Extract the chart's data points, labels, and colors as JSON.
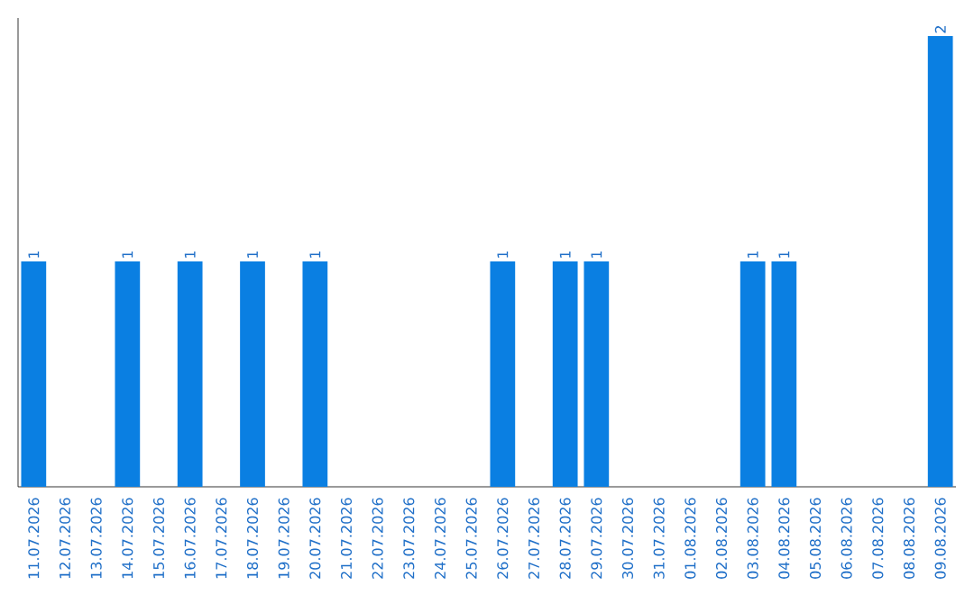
{
  "chart_data": {
    "type": "bar",
    "categories": [
      "11.07.2026",
      "12.07.2026",
      "13.07.2026",
      "14.07.2026",
      "15.07.2026",
      "16.07.2026",
      "17.07.2026",
      "18.07.2026",
      "19.07.2026",
      "20.07.2026",
      "21.07.2026",
      "22.07.2026",
      "23.07.2026",
      "24.07.2026",
      "25.07.2026",
      "26.07.2026",
      "27.07.2026",
      "28.07.2026",
      "29.07.2026",
      "30.07.2026",
      "31.07.2026",
      "01.08.2026",
      "02.08.2026",
      "03.08.2026",
      "04.08.2026",
      "05.08.2026",
      "06.08.2026",
      "07.08.2026",
      "08.08.2026",
      "09.08.2026"
    ],
    "values": [
      1,
      0,
      0,
      1,
      0,
      1,
      0,
      1,
      0,
      1,
      0,
      0,
      0,
      0,
      0,
      1,
      0,
      1,
      1,
      0,
      0,
      0,
      0,
      1,
      1,
      0,
      0,
      0,
      0,
      2
    ],
    "value_labels": [
      "1",
      null,
      null,
      "1",
      null,
      "1",
      null,
      "1",
      null,
      "1",
      null,
      null,
      null,
      null,
      null,
      "1",
      null,
      "1",
      "1",
      null,
      null,
      null,
      null,
      "1",
      "1",
      null,
      null,
      null,
      null,
      "2"
    ],
    "color": "#0a7fe2",
    "ylim": [
      0,
      2.08
    ],
    "tick_labels": "x",
    "grid": false
  }
}
